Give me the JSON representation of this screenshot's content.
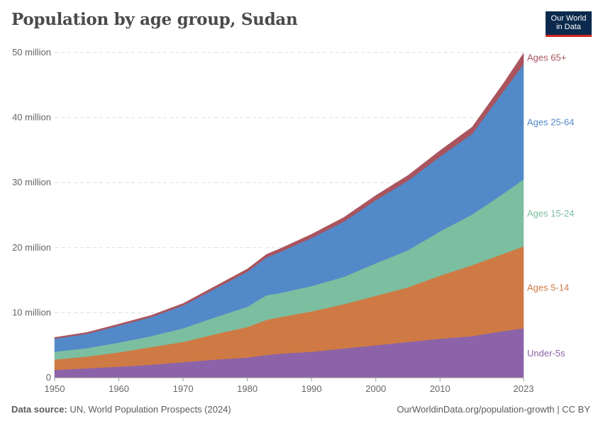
{
  "header": {
    "title": "Population by age group, Sudan",
    "logo_text": "Our World in Data",
    "logo_lines": [
      "Our World",
      "in Data"
    ]
  },
  "footer": {
    "source_label": "Data source:",
    "source_text": "UN, World Population Prospects (2024)",
    "url_text": "OurWorldinData.org/population-growth | CC BY"
  },
  "colors": {
    "under5": "#8c63a8",
    "age5_14": "#cf7a44",
    "age15_24": "#7cbea0",
    "age25_64": "#5289c9",
    "age65": "#a9545e"
  },
  "chart_data": {
    "type": "area",
    "stacked": true,
    "title": "Population by age group, Sudan",
    "xlim": [
      1950,
      2023
    ],
    "ylim": [
      0,
      50000000
    ],
    "x_ticks": [
      1950,
      1960,
      1970,
      1980,
      1990,
      2000,
      2010,
      2023
    ],
    "x_tick_labels": [
      "1950",
      "1960",
      "1970",
      "1980",
      "1990",
      "2000",
      "2010",
      "2023"
    ],
    "y_ticks": [
      0,
      10000000,
      20000000,
      30000000,
      40000000,
      50000000
    ],
    "y_tick_labels": [
      "0",
      "10 million",
      "20 million",
      "30 million",
      "40 million",
      "50 million"
    ],
    "grid": "horizontal dashed",
    "legend": "right, inline labels",
    "x": [
      1950,
      1955,
      1960,
      1965,
      1970,
      1975,
      1980,
      1983,
      1985,
      1990,
      1995,
      2000,
      2005,
      2010,
      2015,
      2020,
      2023
    ],
    "series": [
      {
        "name": "Under-5s",
        "color_key": "under5",
        "values": [
          1200000,
          1450000,
          1700000,
          2000000,
          2400000,
          2800000,
          3100000,
          3500000,
          3700000,
          4000000,
          4500000,
          5000000,
          5500000,
          6000000,
          6400000,
          7200000,
          7600000
        ]
      },
      {
        "name": "Ages 5-14",
        "color_key": "age5_14",
        "values": [
          1600000,
          1800000,
          2200000,
          2700000,
          3100000,
          3900000,
          4700000,
          5400000,
          5600000,
          6200000,
          6800000,
          7600000,
          8400000,
          9700000,
          10900000,
          11900000,
          12600000
        ]
      },
      {
        "name": "Ages 15-24",
        "color_key": "age15_24",
        "values": [
          1200000,
          1300000,
          1500000,
          1700000,
          2100000,
          2600000,
          3100000,
          3800000,
          3700000,
          3900000,
          4200000,
          5000000,
          5700000,
          6800000,
          7800000,
          9300000,
          10300000
        ]
      },
      {
        "name": "Ages 25-64",
        "color_key": "age25_64",
        "values": [
          2000000,
          2200000,
          2600000,
          2900000,
          3500000,
          4400000,
          5400000,
          5800000,
          6300000,
          7400000,
          8500000,
          9700000,
          10700000,
          11500000,
          12400000,
          15800000,
          17700000
        ]
      },
      {
        "name": "Ages 65+",
        "color_key": "age65",
        "values": [
          200000,
          220000,
          250000,
          280000,
          320000,
          370000,
          420000,
          480000,
          500000,
          560000,
          640000,
          720000,
          800000,
          930000,
          1050000,
          1250000,
          1700000
        ]
      }
    ]
  }
}
